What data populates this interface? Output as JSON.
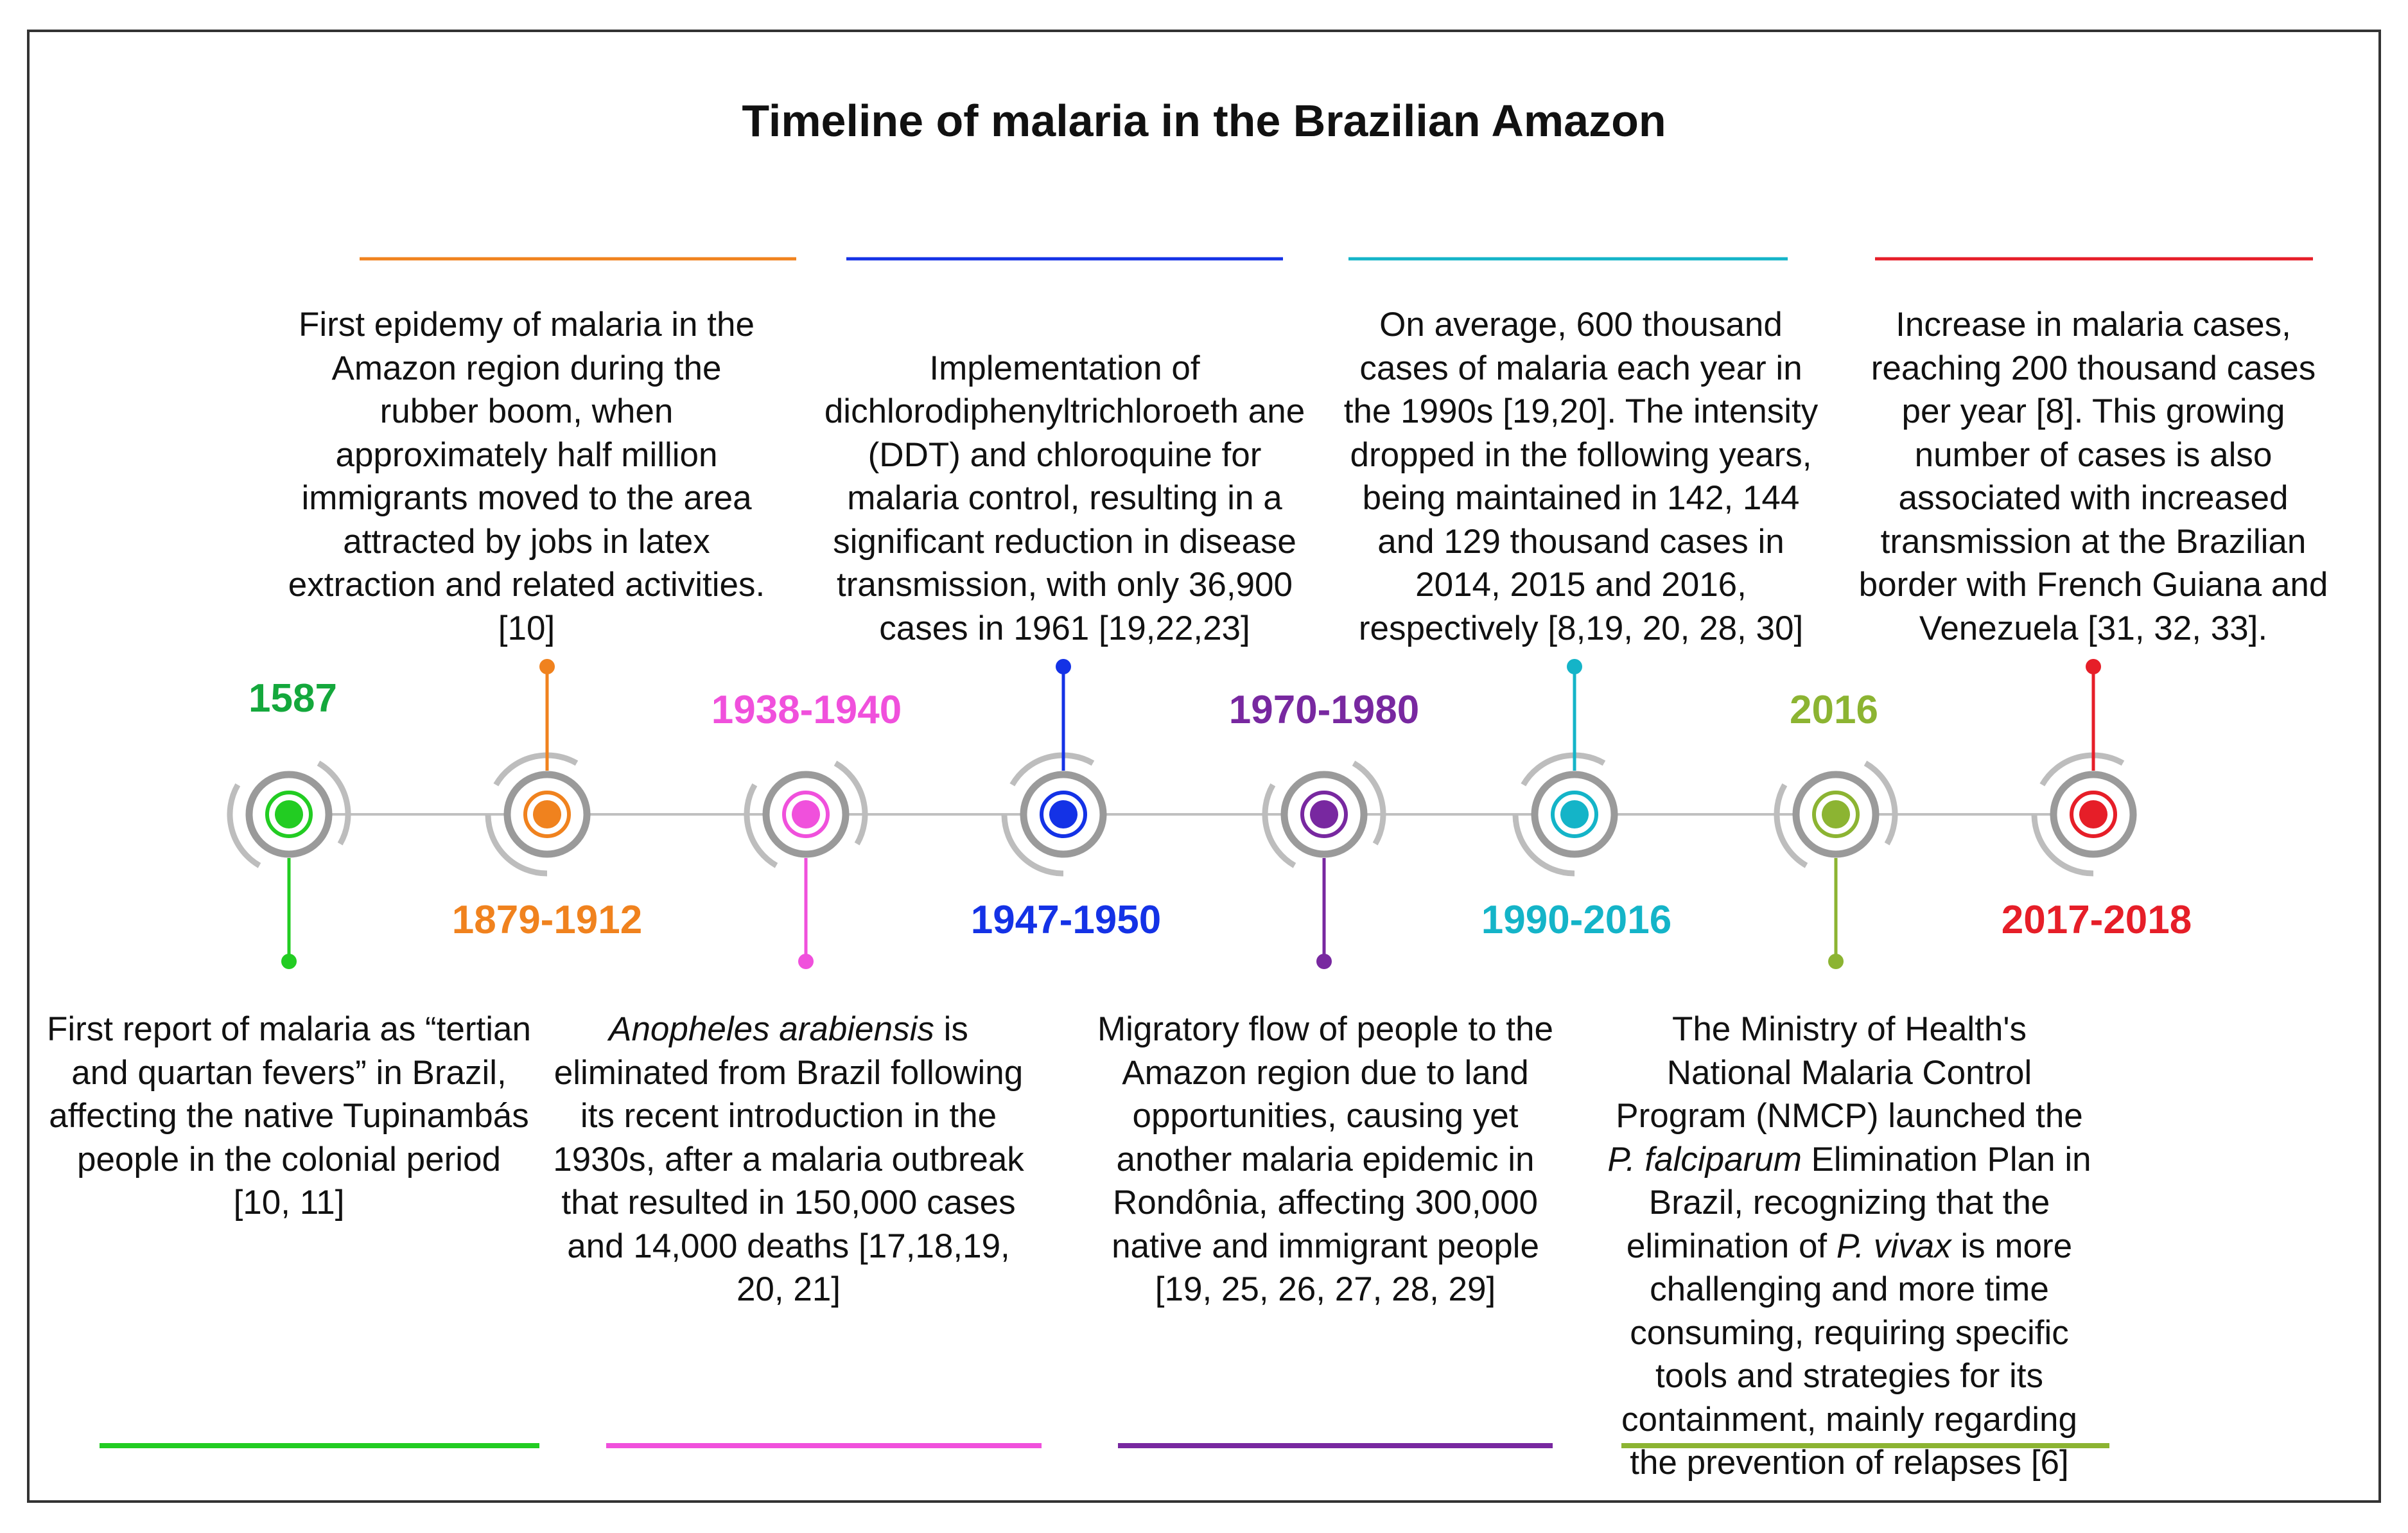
{
  "title": "Timeline of malaria in the Brazilian Amazon",
  "events": [
    {
      "date": "1587",
      "color": "#22cc22",
      "date_color": "#14a83c",
      "position": "below",
      "description": [
        {
          "text": "First report of malaria as “tertian and quartan fevers” in Brazil, affecting the native Tupinambás people in the colonial period [10, 11]"
        }
      ]
    },
    {
      "date": "1879-1912",
      "color": "#f0821e",
      "date_color": "#f0821e",
      "position": "above",
      "description": [
        {
          "text": "First epidemy of malaria in the Amazon region during the rubber boom, when approximately half million immigrants moved to the area attracted by jobs in latex extraction and related activities. [10]"
        }
      ]
    },
    {
      "date": "1938-1940",
      "color": "#f050dc",
      "date_color": "#f050dc",
      "position": "below",
      "description": [
        {
          "text": "Anopheles arabiensis",
          "italic": true
        },
        {
          "text": " is eliminated from Brazil following its recent introduction in the 1930s, after a malaria outbreak that resulted in 150,000 cases and 14,000 deaths [17,18,19, 20, 21]"
        }
      ]
    },
    {
      "date": "1947-1950",
      "color": "#1432e6",
      "date_color": "#1432e6",
      "position": "above",
      "description": [
        {
          "text": "Implementation of dichlorodiphenyltrichloroeth ane (DDT) and chloroquine for malaria control, resulting in a significant reduction in disease transmission, with only 36,900 cases in 1961 [19,22,23]"
        }
      ]
    },
    {
      "date": "1970-1980",
      "color": "#7828a0",
      "date_color": "#7828a0",
      "position": "below",
      "description": [
        {
          "text": "Migratory flow of people to the Amazon region due to land opportunities, causing yet another malaria epidemic in Rondônia, affecting 300,000 native and immigrant people [19, 25, 26, 27, 28, 29]"
        }
      ]
    },
    {
      "date": "1990-2016",
      "color": "#14b4c8",
      "date_color": "#14b4c8",
      "position": "above",
      "description": [
        {
          "text": "On average, 600 thousand cases of malaria each year in the 1990s [19,20]. The intensity dropped in the following years, being maintained in 142, 144 and 129 thousand cases in 2014, 2015 and 2016, respectively [8,19, 20, 28, 30]"
        }
      ]
    },
    {
      "date": "2016",
      "color": "#8cb432",
      "date_color": "#8cb432",
      "position": "below",
      "description": [
        {
          "text": "The Ministry of Health's National Malaria Control Program (NMCP) launched the "
        },
        {
          "text": "P. falciparum",
          "italic": true
        },
        {
          "text": " Elimination Plan in Brazil, recognizing that the elimination of "
        },
        {
          "text": "P. vivax",
          "italic": true
        },
        {
          "text": " is more challenging and more time consuming, requiring specific tools and strategies for its containment, mainly regarding the prevention of relapses [6]"
        }
      ]
    },
    {
      "date": "2017-2018",
      "color": "#e61e28",
      "date_color": "#e61e28",
      "position": "above",
      "description": [
        {
          "text": "Increase in malaria cases, reaching 200 thousand cases per year [8]. This growing number of cases is also associated with increased transmission at the Brazilian border with French Guiana and Venezuela [31, 32, 33]."
        }
      ]
    }
  ]
}
